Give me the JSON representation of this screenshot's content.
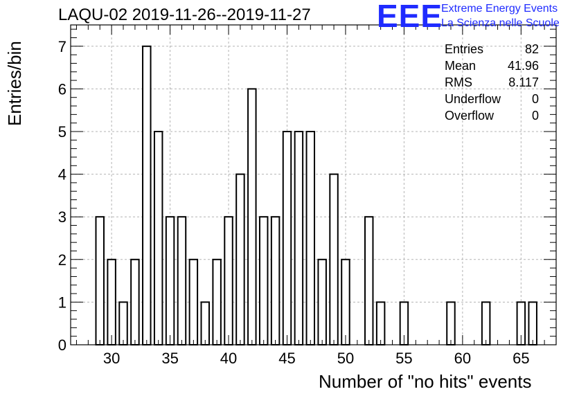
{
  "title": "LAQU-02 2019-11-26--2019-11-27",
  "logo": {
    "mark": "EEE",
    "line1": "Extreme Energy Events",
    "line2": "La Scienza nelle Scuole",
    "color": "#1f2bff"
  },
  "stats": [
    {
      "label": "Entries",
      "value": "82"
    },
    {
      "label": "Mean",
      "value": "41.96"
    },
    {
      "label": "RMS",
      "value": "8.117"
    },
    {
      "label": "Underflow",
      "value": "0"
    },
    {
      "label": "Overflow",
      "value": "0"
    }
  ],
  "chart_data": {
    "type": "bar",
    "style": "step histogram, unit-width bins",
    "xlabel": "Number of \"no hits\" events",
    "ylabel": "Entries/bin",
    "xlim": [
      26.5,
      68.0
    ],
    "ylim": [
      0,
      7.5
    ],
    "xticks": [
      30,
      35,
      40,
      45,
      50,
      55,
      60,
      65
    ],
    "yticks": [
      0,
      1,
      2,
      3,
      4,
      5,
      6,
      7
    ],
    "grid": true,
    "bins": [
      {
        "x": 29,
        "count": 3
      },
      {
        "x": 30,
        "count": 2
      },
      {
        "x": 31,
        "count": 1
      },
      {
        "x": 32,
        "count": 2
      },
      {
        "x": 33,
        "count": 7
      },
      {
        "x": 34,
        "count": 5
      },
      {
        "x": 35,
        "count": 3
      },
      {
        "x": 36,
        "count": 3
      },
      {
        "x": 37,
        "count": 2
      },
      {
        "x": 38,
        "count": 1
      },
      {
        "x": 39,
        "count": 2
      },
      {
        "x": 40,
        "count": 3
      },
      {
        "x": 41,
        "count": 4
      },
      {
        "x": 42,
        "count": 6
      },
      {
        "x": 43,
        "count": 3
      },
      {
        "x": 44,
        "count": 3
      },
      {
        "x": 45,
        "count": 5
      },
      {
        "x": 46,
        "count": 5
      },
      {
        "x": 47,
        "count": 5
      },
      {
        "x": 48,
        "count": 2
      },
      {
        "x": 49,
        "count": 4
      },
      {
        "x": 50,
        "count": 2
      },
      {
        "x": 52,
        "count": 3
      },
      {
        "x": 53,
        "count": 1
      },
      {
        "x": 55,
        "count": 1
      },
      {
        "x": 59,
        "count": 1
      },
      {
        "x": 62,
        "count": 1
      },
      {
        "x": 65,
        "count": 1
      },
      {
        "x": 66,
        "count": 1
      }
    ]
  }
}
